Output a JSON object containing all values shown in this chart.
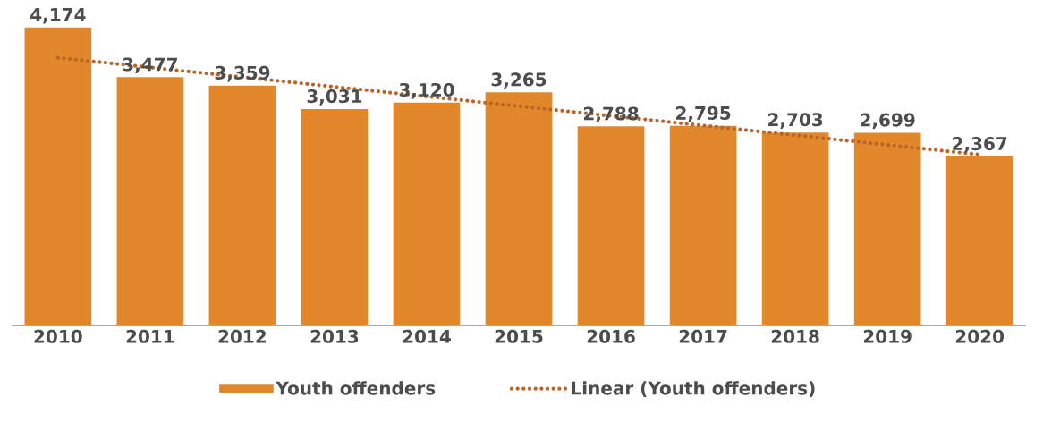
{
  "chart_data": {
    "type": "bar",
    "categories": [
      "2010",
      "2011",
      "2012",
      "2013",
      "2014",
      "2015",
      "2016",
      "2017",
      "2018",
      "2019",
      "2020"
    ],
    "series": [
      {
        "name": "Youth offenders",
        "color": "#e3882a",
        "values": [
          4174,
          3477,
          3359,
          3031,
          3120,
          3265,
          2788,
          2795,
          2703,
          2699,
          2367
        ],
        "value_labels": [
          "4,174",
          "3,477",
          "3,359",
          "3,031",
          "3,120",
          "3,265",
          "2,788",
          "2,795",
          "2,703",
          "2,699",
          "2,367"
        ]
      },
      {
        "name": "Linear (Youth offenders)",
        "type": "line",
        "color": "#b8642a",
        "line_style": "dotted",
        "values": [
          3749,
          3613,
          3478,
          3342,
          3207,
          3071,
          2935,
          2800,
          2664,
          2529,
          2393
        ]
      }
    ],
    "legend": "bottom",
    "grid": false
  }
}
